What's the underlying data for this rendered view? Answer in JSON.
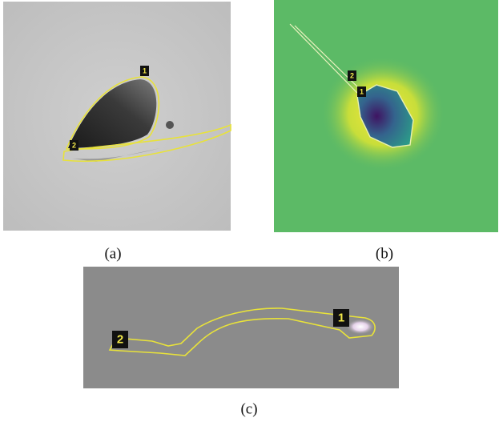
{
  "panels": [
    {
      "caption": "(a)",
      "labels": [
        "1",
        "2"
      ]
    },
    {
      "caption": "(b)",
      "labels": [
        "1",
        "2"
      ]
    },
    {
      "caption": "(c)",
      "labels": [
        "1",
        "2"
      ]
    }
  ]
}
